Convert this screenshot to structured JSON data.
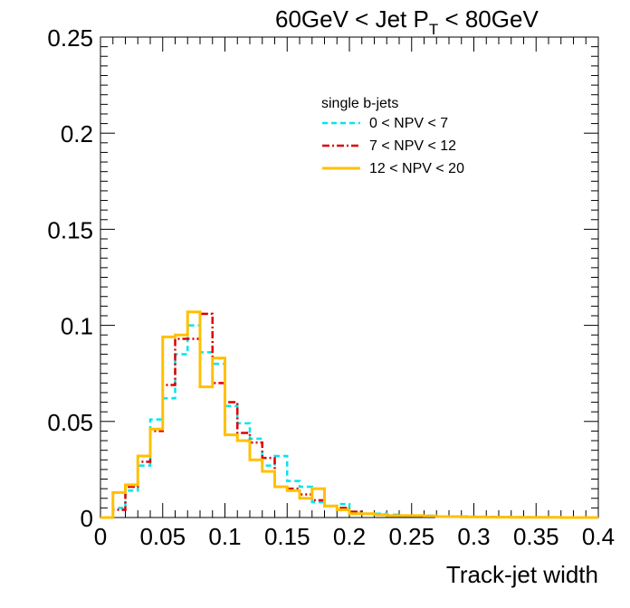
{
  "chart_data": {
    "type": "line",
    "title": "60GeV < Jet P",
    "title_sub": "T",
    "title_rest": " < 80GeV",
    "xlabel": "Track-jet width",
    "ylabel": "",
    "xlim": [
      0,
      0.4
    ],
    "ylim": [
      0,
      0.25
    ],
    "x_ticks": [
      "0",
      "0.05",
      "0.1",
      "0.15",
      "0.2",
      "0.25",
      "0.3",
      "0.35",
      "0.4"
    ],
    "y_ticks": [
      "0",
      "0.05",
      "0.1",
      "0.15",
      "0.2",
      "0.25"
    ],
    "grid": false,
    "legend_placement": "top-right",
    "legend_header": "single b-jets",
    "bin_edges": [
      0,
      0.01,
      0.02,
      0.03,
      0.04,
      0.05,
      0.06,
      0.07,
      0.08,
      0.09,
      0.1,
      0.11,
      0.12,
      0.13,
      0.14,
      0.15,
      0.16,
      0.17,
      0.18,
      0.19,
      0.2,
      0.21,
      0.22,
      0.23,
      0.24,
      0.25,
      0.26,
      0.27,
      0.28,
      0.29,
      0.3,
      0.31,
      0.32,
      0.33,
      0.34,
      0.35,
      0.36,
      0.37,
      0.38,
      0.39,
      0.4
    ],
    "series": [
      {
        "name": "0  < NPV < 7",
        "color": "#00e5ee",
        "style": "dashed",
        "values": [
          0,
          0.005,
          0.014,
          0.027,
          0.051,
          0.062,
          0.085,
          0.1,
          0.086,
          0.08,
          0.058,
          0.049,
          0.041,
          0.027,
          0.032,
          0.019,
          0.016,
          0.008,
          0.006,
          0.007,
          0.003,
          0.002,
          0.002,
          0.0015,
          0.001,
          0.001,
          0.001,
          0.0005,
          0.0005,
          0.0005,
          0.0004,
          0.0003,
          0.0003,
          0.0002,
          0.0002,
          0.0002,
          0.0001,
          0.0001,
          0.0001,
          0
        ]
      },
      {
        "name": "7  < NPV < 12",
        "color": "#dd0000",
        "style": "dashdot",
        "values": [
          0,
          0.004,
          0.016,
          0.029,
          0.045,
          0.069,
          0.093,
          0.093,
          0.106,
          0.07,
          0.06,
          0.044,
          0.039,
          0.031,
          0.016,
          0.015,
          0.012,
          0.009,
          0.006,
          0.005,
          0.003,
          0.002,
          0.0015,
          0.001,
          0.001,
          0.001,
          0.0008,
          0.0005,
          0.0005,
          0.0004,
          0.0003,
          0.0003,
          0.0002,
          0.0002,
          0.0001,
          0.0001,
          0.0001,
          0.0001,
          0,
          0
        ]
      },
      {
        "name": "12 < NPV < 20",
        "color": "#ffc000",
        "style": "solid",
        "values": [
          0,
          0.013,
          0.017,
          0.032,
          0.046,
          0.094,
          0.095,
          0.107,
          0.068,
          0.083,
          0.043,
          0.04,
          0.03,
          0.024,
          0.016,
          0.014,
          0.01,
          0.015,
          0.006,
          0.004,
          0.002,
          0.002,
          0.0015,
          0.001,
          0.001,
          0.001,
          0.0008,
          0.0005,
          0.0005,
          0.0003,
          0.0003,
          0.0002,
          0.0002,
          0.0001,
          0.0001,
          0.0001,
          0.0001,
          0,
          0,
          0
        ]
      }
    ]
  }
}
